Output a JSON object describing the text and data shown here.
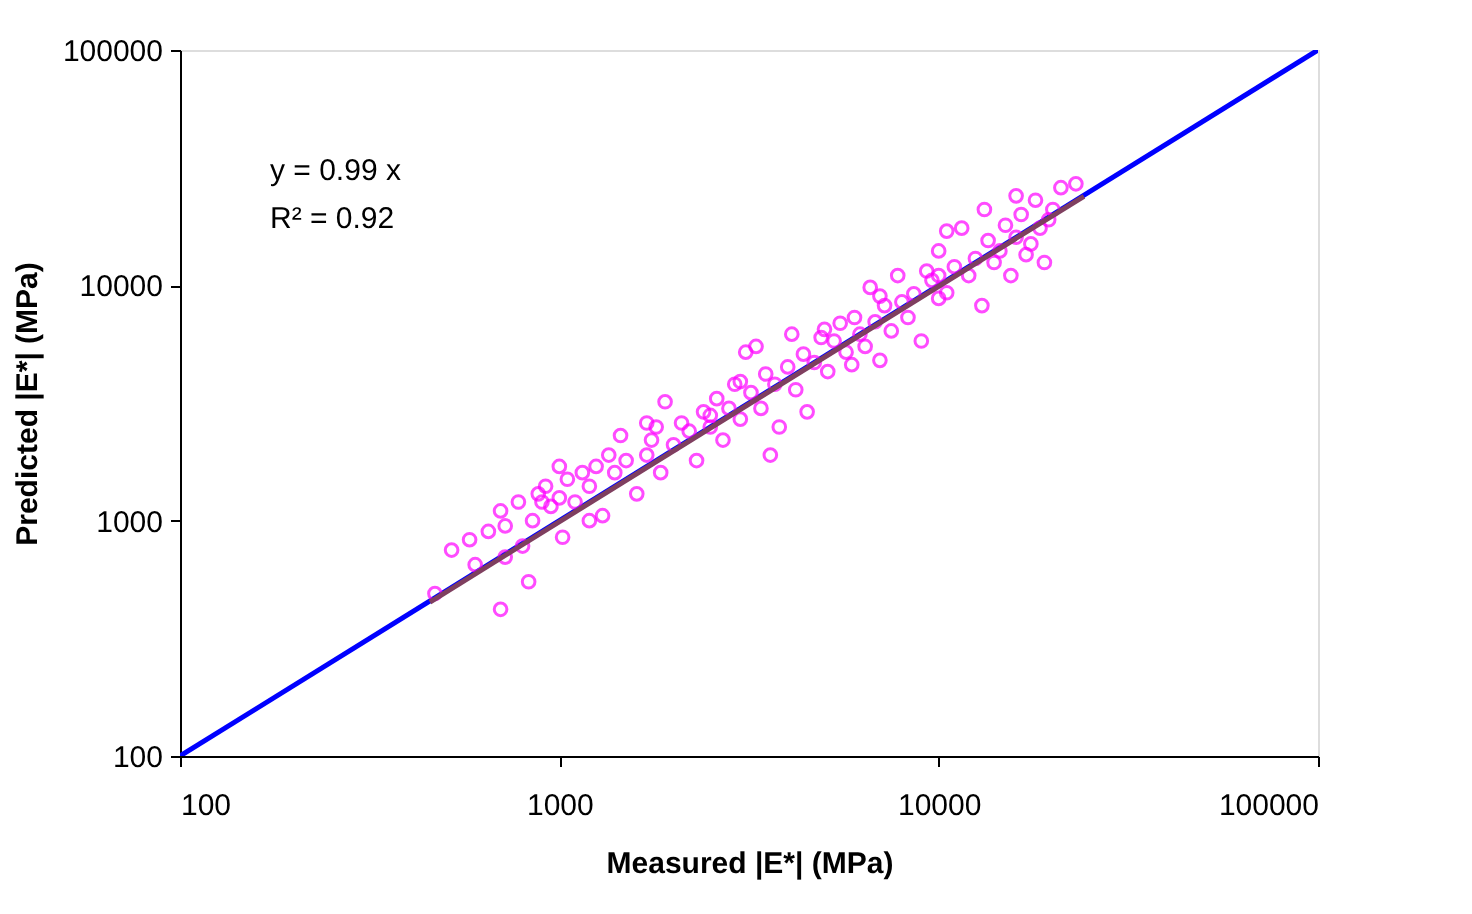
{
  "chart_data": {
    "type": "scatter",
    "xlabel": "Measured |E*| (MPa)",
    "ylabel": "Predicted |E*| (MPa)",
    "log": "xy",
    "grid": false,
    "xlim": [
      100,
      100000
    ],
    "ylim": [
      100,
      100000
    ],
    "xticks": [
      100,
      1000,
      10000,
      100000
    ],
    "yticks": [
      100,
      1000,
      10000,
      100000
    ],
    "annotations": [
      "y = 0.99 x",
      "R² = 0.92"
    ],
    "series": [
      {
        "type": "line",
        "color": "#0000ff",
        "line_style": "solid",
        "marker": "none",
        "x": [
          100,
          100000
        ],
        "values": [
          100,
          100000
        ]
      },
      {
        "color": "#ff00ff",
        "marker": "circle",
        "x": [
          470,
          520,
          580,
          600,
          650,
          700,
          700,
          720,
          720,
          780,
          800,
          830,
          850,
          880,
          900,
          920,
          950,
          1000,
          1000,
          1020,
          1050,
          1100,
          1150,
          1200,
          1250,
          1300,
          1350,
          1400,
          1450,
          1500,
          1600,
          1700,
          1750,
          1800,
          1850,
          1900,
          2000,
          2100,
          2200,
          2300,
          2400,
          2500,
          2600,
          2700,
          2800,
          2900,
          3000,
          3100,
          3200,
          3300,
          3400,
          3500,
          3600,
          3700,
          3800,
          4000,
          4100,
          4200,
          4400,
          4500,
          4700,
          4900,
          5100,
          5300,
          5500,
          5700,
          5900,
          6000,
          6200,
          6400,
          6600,
          6800,
          7000,
          7200,
          7500,
          7800,
          8000,
          8300,
          8600,
          9000,
          9300,
          9600,
          10000,
          10000,
          10500,
          11000,
          11500,
          12000,
          12500,
          13000,
          13200,
          13500,
          14000,
          14500,
          15000,
          15500,
          16000,
          16500,
          17000,
          17500,
          18000,
          18500,
          19000,
          19500,
          20000,
          21000,
          23000,
          16000,
          10500,
          7000,
          5000,
          3000,
          2500,
          1700,
          1200,
          10000
        ],
        "values": [
          490,
          750,
          830,
          650,
          900,
          420,
          1100,
          950,
          700,
          1200,
          780,
          550,
          1000,
          1300,
          1200,
          1400,
          1150,
          1700,
          1250,
          850,
          1500,
          1200,
          1600,
          1400,
          1700,
          1050,
          1900,
          1600,
          2300,
          1800,
          1300,
          1900,
          2200,
          2500,
          1600,
          3200,
          2100,
          2600,
          2400,
          1800,
          2900,
          2500,
          3300,
          2200,
          3000,
          3800,
          2700,
          5200,
          3500,
          5500,
          3000,
          4200,
          1900,
          3800,
          2500,
          4500,
          6200,
          3600,
          5100,
          2900,
          4700,
          6000,
          4300,
          5800,
          6900,
          5200,
          4600,
          7300,
          6200,
          5500,
          9800,
          7000,
          4800,
          8200,
          6400,
          11000,
          8500,
          7300,
          9200,
          5800,
          11500,
          10500,
          14000,
          8800,
          9300,
          12000,
          17500,
          11000,
          13000,
          8200,
          21000,
          15500,
          12500,
          14000,
          18000,
          11000,
          16000,
          20000,
          13500,
          15000,
          23000,
          17500,
          12500,
          19000,
          21000,
          26000,
          27000,
          24000,
          17000,
          9000,
          6500,
          3900,
          2800,
          2600,
          1000,
          11000
        ]
      },
      {
        "type": "line",
        "color": "#7f3f5f",
        "line_style": "solid",
        "marker": "none",
        "x": [
          456,
          24150
        ],
        "values": [
          451,
          23900
        ]
      }
    ]
  }
}
